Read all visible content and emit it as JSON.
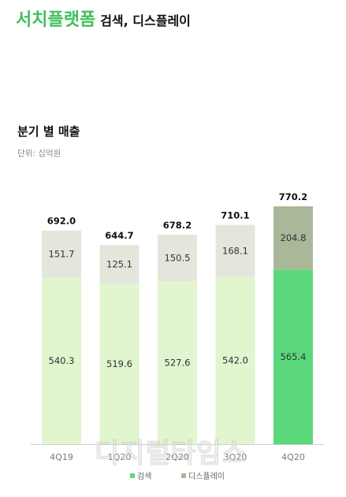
{
  "header": {
    "brand": "서치플랫폼",
    "subtitle": "검색, 디스플레이"
  },
  "watermark": "디지털타임스",
  "colors": {
    "brand_green": "#3ec15e",
    "search_light": "#e1f5cf",
    "display_light": "#e4e6dc",
    "search_highlight": "#5bd87b",
    "display_highlight": "#a8b898"
  },
  "chart_data": {
    "type": "bar",
    "stacked": true,
    "title": "분기 별 매출",
    "unit": "단위: 십억원",
    "categories": [
      "4Q19",
      "1Q20",
      "2Q20",
      "3Q20",
      "4Q20"
    ],
    "totals": [
      "692.0",
      "644.7",
      "678.2",
      "710.1",
      "770.2"
    ],
    "highlight_category": "4Q20",
    "series": [
      {
        "name": "검색",
        "values": [
          540.3,
          519.6,
          527.6,
          542.0,
          565.4
        ]
      },
      {
        "name": "디스플레이",
        "values": [
          151.7,
          125.1,
          150.5,
          168.1,
          204.8
        ]
      }
    ],
    "ylim": [
      0,
      770.2
    ],
    "grid": false,
    "legend": "bottom-center"
  }
}
